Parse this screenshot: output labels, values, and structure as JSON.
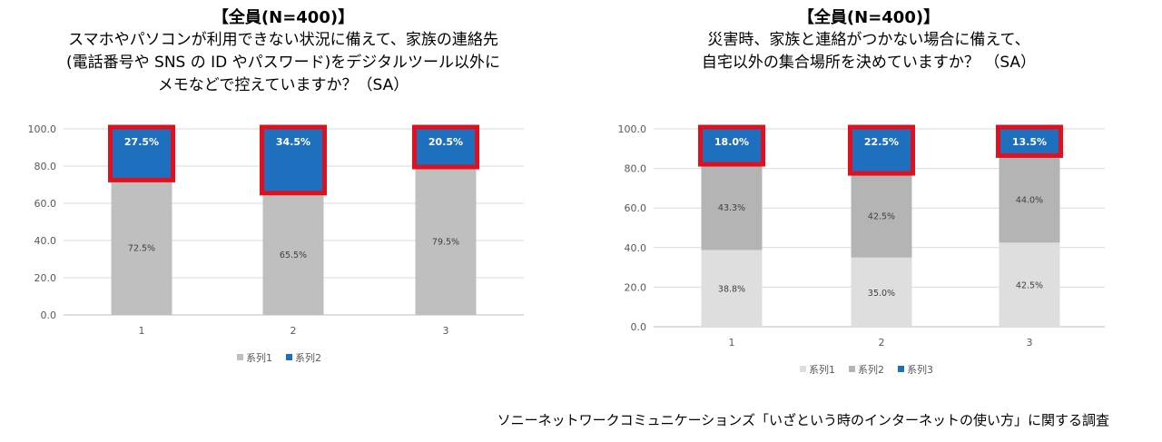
{
  "left": {
    "title": "【全員(N=400)】",
    "question_lines": [
      "スマホやパソコンが利用できない状況に備えて、家族の連絡先",
      "(電話番号や SNS の ID やパスワード)をデジタルツール以外に",
      "メモなどで控えていますか？（SA）"
    ]
  },
  "right": {
    "title": "【全員(N=400)】",
    "question_lines": [
      "災害時、家族と連絡がつかない場合に備えて、",
      "自宅以外の集合場所を決めていますか？ （SA）"
    ]
  },
  "source_note": "ソニーネットワークコミュニケーションズ「いざという時のインターネットの使い方」に関する調査",
  "chart_data": [
    {
      "type": "bar",
      "stacked": true,
      "categories": [
        "1",
        "2",
        "3"
      ],
      "ylim": [
        0,
        100
      ],
      "yticks": [
        "0.0",
        "20.0",
        "40.0",
        "60.0",
        "80.0",
        "100.0"
      ],
      "grid": true,
      "legend_position": "bottom",
      "highlight_color": "#e0101e",
      "series": [
        {
          "name": "系列1",
          "values": [
            72.5,
            65.5,
            79.5
          ],
          "labels": [
            "72.5%",
            "65.5%",
            "79.5%"
          ],
          "color": "#bfbfbf"
        },
        {
          "name": "系列2",
          "values": [
            27.5,
            34.5,
            20.5
          ],
          "labels": [
            "27.5%",
            "34.5%",
            "20.5%"
          ],
          "color": "#1f6fbf",
          "highlighted": true
        }
      ]
    },
    {
      "type": "bar",
      "stacked": true,
      "categories": [
        "1",
        "2",
        "3"
      ],
      "ylim": [
        0,
        100
      ],
      "yticks": [
        "0.0",
        "20.0",
        "40.0",
        "60.0",
        "80.0",
        "100.0"
      ],
      "grid": true,
      "legend_position": "bottom",
      "highlight_color": "#e0101e",
      "series": [
        {
          "name": "系列1",
          "values": [
            38.8,
            35.0,
            42.5
          ],
          "labels": [
            "38.8%",
            "35.0%",
            "42.5%"
          ],
          "color": "#dedede"
        },
        {
          "name": "系列2",
          "values": [
            43.3,
            42.5,
            44.0
          ],
          "labels": [
            "43.3%",
            "42.5%",
            "44.0%"
          ],
          "color": "#b4b4b4"
        },
        {
          "name": "系列3",
          "values": [
            18.0,
            22.5,
            13.5
          ],
          "labels": [
            "18.0%",
            "22.5%",
            "13.5%"
          ],
          "color": "#1f6fbf",
          "highlighted": true
        }
      ]
    }
  ]
}
